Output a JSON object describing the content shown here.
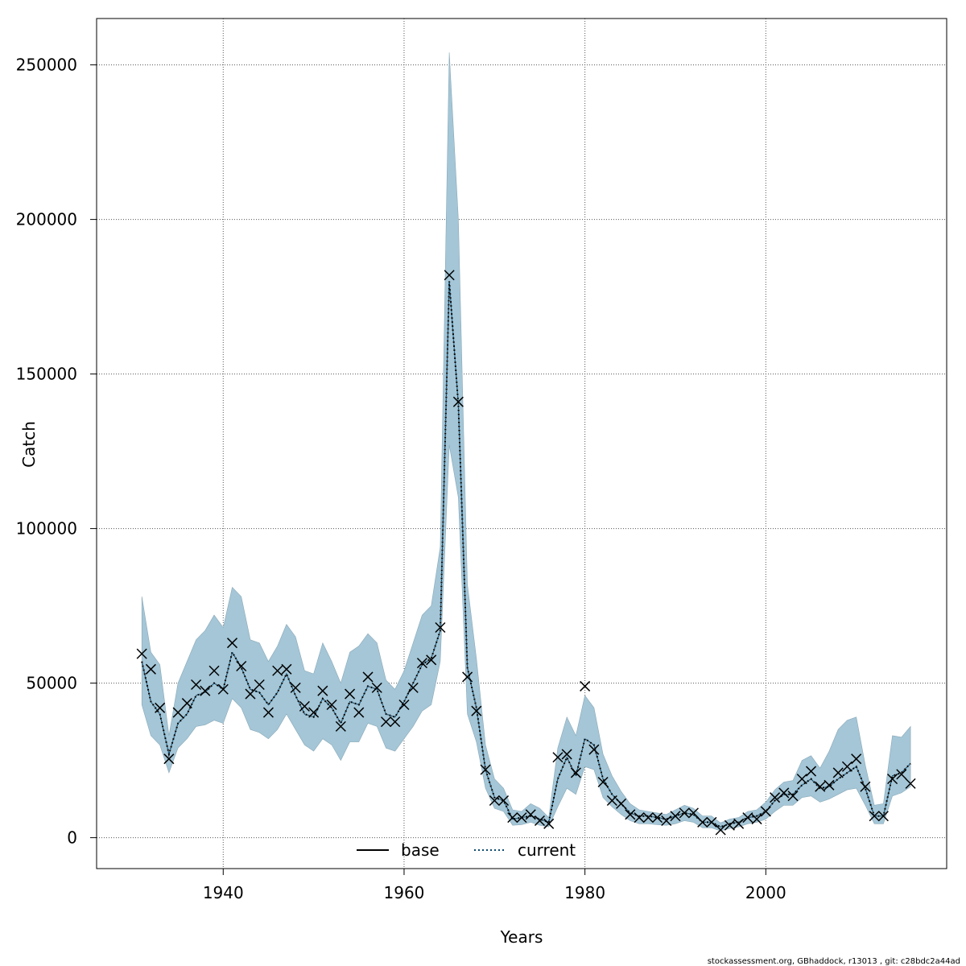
{
  "chart_data": {
    "type": "line",
    "xlabel": "Years",
    "ylabel": "Catch",
    "xlim": [
      1926,
      2020
    ],
    "ylim": [
      -10000,
      265000
    ],
    "xticks": [
      1940,
      1960,
      1980,
      2000
    ],
    "yticks": [
      0,
      50000,
      100000,
      150000,
      200000,
      250000
    ],
    "grid": true,
    "legend": {
      "placement": "bottom-center",
      "entries": [
        "base",
        "current"
      ]
    },
    "colors": {
      "band": "#a4c6d7",
      "current_line": "#0b4a6e",
      "observed": "#000000",
      "grid": "#555555"
    },
    "x": [
      1931,
      1932,
      1933,
      1934,
      1935,
      1936,
      1937,
      1938,
      1939,
      1940,
      1941,
      1942,
      1943,
      1944,
      1945,
      1946,
      1947,
      1948,
      1949,
      1950,
      1951,
      1952,
      1953,
      1954,
      1955,
      1956,
      1957,
      1958,
      1959,
      1960,
      1961,
      1962,
      1963,
      1964,
      1965,
      1966,
      1967,
      1968,
      1969,
      1970,
      1971,
      1972,
      1973,
      1974,
      1975,
      1976,
      1977,
      1978,
      1979,
      1980,
      1981,
      1982,
      1983,
      1984,
      1985,
      1986,
      1987,
      1988,
      1989,
      1990,
      1991,
      1992,
      1993,
      1994,
      1995,
      1996,
      1997,
      1998,
      1999,
      2000,
      2001,
      2002,
      2003,
      2004,
      2005,
      2006,
      2007,
      2008,
      2009,
      2010,
      2011,
      2012,
      2013,
      2014,
      2015,
      2016
    ],
    "series": [
      {
        "name": "current",
        "values": [
          57000,
          44000,
          40000,
          27000,
          37000,
          40000,
          46000,
          47000,
          50000,
          48000,
          60000,
          55000,
          48000,
          47000,
          43000,
          47000,
          53000,
          46000,
          40000,
          39000,
          45000,
          42000,
          37000,
          44000,
          43000,
          49000,
          48000,
          40000,
          39000,
          44000,
          50000,
          56000,
          58000,
          67000,
          180000,
          140000,
          55000,
          42000,
          22000,
          13000,
          12000,
          6000,
          6500,
          7000,
          6000,
          5000,
          19000,
          26000,
          20000,
          32000,
          30000,
          19000,
          14000,
          11000,
          8000,
          7000,
          7000,
          6500,
          6000,
          7000,
          8000,
          7500,
          5000,
          5000,
          3500,
          4500,
          5000,
          6500,
          7000,
          8500,
          12000,
          14000,
          14000,
          17000,
          19000,
          16000,
          16500,
          19000,
          21000,
          23000,
          16000,
          7000,
          7000,
          20000,
          21000,
          24000
        ]
      }
    ],
    "confidence_band": {
      "lower": [
        43000,
        33000,
        30000,
        21000,
        29000,
        32000,
        36000,
        36500,
        38000,
        37000,
        45000,
        42000,
        35000,
        34000,
        32000,
        35000,
        40000,
        35000,
        30000,
        28000,
        32000,
        30000,
        25000,
        31000,
        31000,
        37000,
        36000,
        29000,
        28000,
        32000,
        36000,
        41000,
        43000,
        57000,
        127000,
        110000,
        40000,
        31000,
        16000,
        9500,
        8500,
        4000,
        4200,
        5000,
        4000,
        3500,
        10000,
        16000,
        14000,
        23000,
        22000,
        13000,
        10000,
        7500,
        5500,
        4500,
        4500,
        4200,
        4000,
        4500,
        5500,
        5000,
        3200,
        3200,
        2200,
        3000,
        3500,
        4500,
        5000,
        6000,
        8500,
        10500,
        10500,
        13000,
        13500,
        11500,
        12500,
        14000,
        15500,
        16000,
        10500,
        4500,
        4500,
        13500,
        14500,
        16500
      ],
      "upper": [
        78000,
        60000,
        56000,
        33000,
        50000,
        57000,
        64000,
        67000,
        72000,
        68000,
        81000,
        78000,
        64000,
        63000,
        57000,
        62000,
        69000,
        65000,
        54000,
        53000,
        63000,
        57000,
        50000,
        60000,
        62000,
        66000,
        63000,
        51000,
        48000,
        54000,
        63000,
        72000,
        75000,
        94000,
        254000,
        200000,
        82000,
        58000,
        30000,
        19000,
        16000,
        9000,
        8500,
        11000,
        9500,
        6500,
        29000,
        39000,
        33000,
        46000,
        42000,
        27000,
        20000,
        15000,
        11000,
        9000,
        8500,
        8000,
        7500,
        9000,
        10500,
        9500,
        7000,
        7000,
        4800,
        6000,
        6500,
        8500,
        9000,
        11500,
        15500,
        18000,
        18500,
        25000,
        26500,
        22500,
        28000,
        35000,
        38000,
        39000,
        23500,
        10500,
        11000,
        33000,
        32500,
        36000
      ]
    },
    "observed_catch": [
      59500,
      54500,
      42000,
      25500,
      40500,
      43500,
      49500,
      47500,
      54000,
      48000,
      63000,
      55500,
      46500,
      49500,
      40500,
      54000,
      54500,
      48500,
      42500,
      40500,
      47500,
      43000,
      36000,
      46500,
      40500,
      52000,
      48500,
      37500,
      37500,
      43000,
      48500,
      56500,
      57500,
      68000,
      182000,
      141000,
      52000,
      41000,
      22000,
      12000,
      12000,
      6500,
      6500,
      7500,
      5500,
      4500,
      26000,
      27000,
      21000,
      49000,
      28500,
      18000,
      12000,
      11000,
      7500,
      6500,
      6500,
      6500,
      5500,
      7000,
      8000,
      8000,
      5000,
      5000,
      2500,
      4000,
      4500,
      6500,
      6000,
      8500,
      13000,
      14500,
      13500,
      19000,
      21500,
      16500,
      17000,
      21000,
      23000,
      25500,
      16500,
      7000,
      7000,
      19000,
      20500,
      17500
    ]
  },
  "footer": {
    "source": "stockassessment.org, GBhaddock, r13013 , git: c28bdc2a44ad"
  }
}
